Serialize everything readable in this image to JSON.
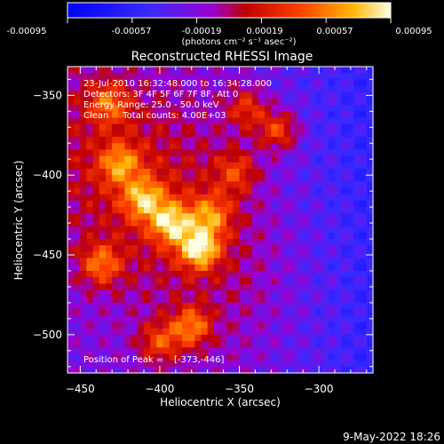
{
  "colorbar": {
    "ticks": [
      "-0.00095",
      "-0.00057",
      "-0.00019",
      "0.00019",
      "0.00057",
      "0.00095"
    ],
    "units": "(photons cm⁻² s⁻¹ asec⁻²)"
  },
  "title": "Reconstructed RHESSI Image",
  "info": {
    "time": "23-Jul-2010 16:32:48.000 to 16:34:28.000",
    "detectors": "Detectors: 3F 4F 5F 6F 7F 8F, Att 0",
    "energy": "Energy Range: 25.0 - 50.0 keV",
    "clean": "Clean     Total counts: 4.00E+03",
    "peak_label": "Position of Peak =",
    "peak_value": "[-373,-446]"
  },
  "footer_date": "9-May-2022 18:26",
  "chart_data": {
    "type": "heatmap",
    "xlabel": "Heliocentric X (arcsec)",
    "ylabel": "Heliocentric Y (arcsec)",
    "xlim": [
      -458,
      -266
    ],
    "ylim": [
      -524,
      -332
    ],
    "xticks": [
      -450,
      -400,
      -350,
      -300
    ],
    "yticks": [
      -350,
      -400,
      -450,
      -500
    ],
    "colorscale_range": [
      -0.00095,
      0.00095
    ],
    "peak": [
      -373,
      -446
    ],
    "hot_spots": [
      {
        "x": -375,
        "y": -446,
        "amp": 0.00095
      },
      {
        "x": -393,
        "y": -430,
        "amp": 0.00078
      },
      {
        "x": -410,
        "y": -415,
        "amp": 0.0007
      },
      {
        "x": -425,
        "y": -393,
        "amp": 0.0006
      },
      {
        "x": -437,
        "y": -456,
        "amp": 0.00062
      },
      {
        "x": -380,
        "y": -495,
        "amp": 0.00068
      },
      {
        "x": -400,
        "y": -505,
        "amp": 0.00055
      },
      {
        "x": -325,
        "y": -372,
        "amp": 0.00062
      },
      {
        "x": -345,
        "y": -358,
        "amp": 0.00048
      },
      {
        "x": -352,
        "y": -398,
        "amp": 0.00045
      },
      {
        "x": -432,
        "y": -355,
        "amp": 0.00055
      },
      {
        "x": -368,
        "y": -425,
        "amp": 0.0006
      }
    ]
  }
}
